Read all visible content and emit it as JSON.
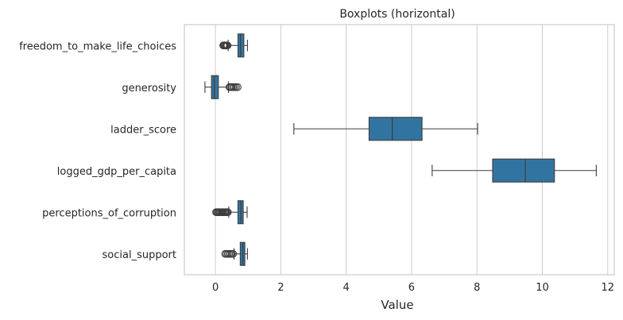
{
  "chart_data": {
    "type": "boxplot",
    "orientation": "horizontal",
    "title": "Boxplots (horizontal)",
    "xlabel": "Value",
    "ylabel": "",
    "xlim": [
      -0.95,
      12.2
    ],
    "xticks": [
      0,
      2,
      4,
      6,
      8,
      10,
      12
    ],
    "grid": "vertical",
    "colors": {
      "box": "#3274a1",
      "line": "#3d3d3d",
      "grid": "#cccccc",
      "frame": "#cccccc"
    },
    "categories": [
      "freedom_to_make_life_choices",
      "generosity",
      "ladder_score",
      "logged_gdp_per_capita",
      "perceptions_of_corruption",
      "social_support"
    ],
    "boxes": [
      {
        "name": "freedom_to_make_life_choices",
        "whislo": 0.39,
        "q1": 0.69,
        "med": 0.77,
        "q3": 0.87,
        "whishi": 0.98,
        "fliers": [
          0.24,
          0.26,
          0.28,
          0.3,
          0.33,
          0.35,
          0.37
        ]
      },
      {
        "name": "generosity",
        "whislo": -0.32,
        "q1": -0.12,
        "med": -0.03,
        "q3": 0.09,
        "whishi": 0.4,
        "fliers": [
          0.43,
          0.46,
          0.5,
          0.54,
          0.58,
          0.63,
          0.68
        ]
      },
      {
        "name": "ladder_score",
        "whislo": 2.4,
        "q1": 4.7,
        "med": 5.41,
        "q3": 6.32,
        "whishi": 8.02,
        "fliers": []
      },
      {
        "name": "logged_gdp_per_capita",
        "whislo": 6.63,
        "q1": 8.48,
        "med": 9.48,
        "q3": 10.37,
        "whishi": 11.65,
        "fliers": []
      },
      {
        "name": "perceptions_of_corruption",
        "whislo": 0.41,
        "q1": 0.69,
        "med": 0.78,
        "q3": 0.85,
        "whishi": 0.97,
        "fliers": [
          0.02,
          0.05,
          0.08,
          0.11,
          0.14,
          0.17,
          0.2,
          0.23,
          0.26,
          0.29,
          0.32,
          0.35,
          0.38
        ]
      },
      {
        "name": "social_support",
        "whislo": 0.57,
        "q1": 0.76,
        "med": 0.84,
        "q3": 0.9,
        "whishi": 0.98,
        "fliers": [
          0.3,
          0.34,
          0.38,
          0.42,
          0.46,
          0.5,
          0.54
        ]
      }
    ]
  }
}
